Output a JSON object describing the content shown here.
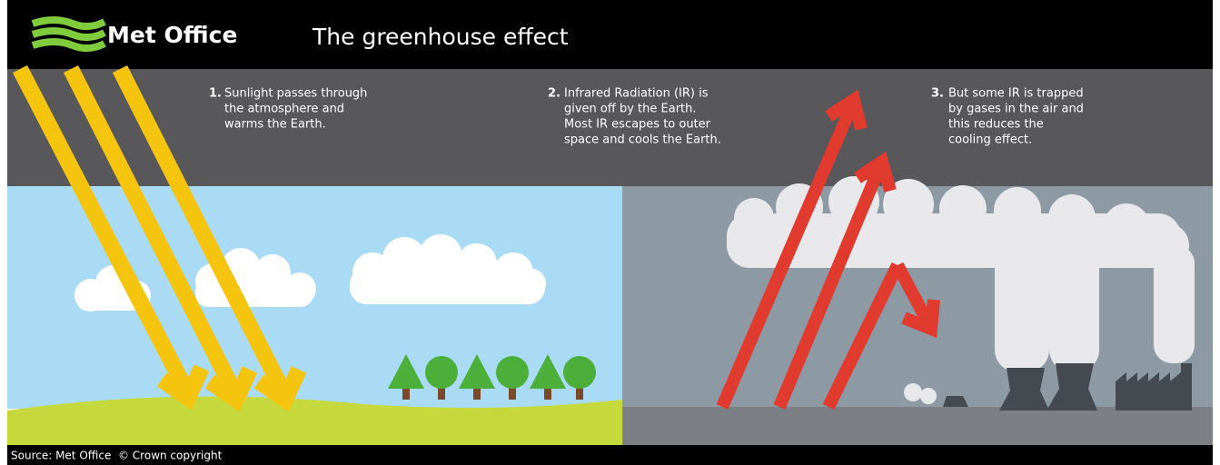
{
  "header": {
    "logo": "Met Office",
    "title": "The greenhouse effect"
  },
  "steps": [
    {
      "number": "1.",
      "lines": [
        "Sunlight passes through",
        "the atmosphere and",
        "warms the Earth."
      ]
    },
    {
      "number": "2.",
      "lines": [
        "Infrared Radiation (IR) is",
        "given off by the Earth.",
        "Most IR escapes to outer",
        "space and cools the Earth."
      ]
    },
    {
      "number": "3.",
      "lines": [
        "But some IR is trapped",
        "by gases in the air and",
        "this reduces the",
        "cooling effect."
      ]
    }
  ],
  "footer": {
    "source": "Source: Met Office  © Crown copyright"
  }
}
